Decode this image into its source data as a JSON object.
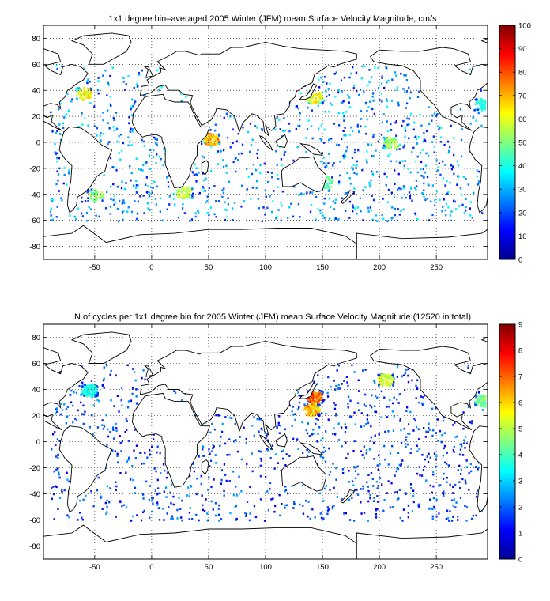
{
  "chart_data": [
    {
      "type": "heatmap",
      "title": "1x1 degree bin–averaged 2005 Winter (JFM) mean Surface Velocity Magnitude, cm/s",
      "xlabel": "",
      "ylabel": "",
      "xlim": [
        -95,
        295
      ],
      "ylim": [
        -90,
        90
      ],
      "x_ticks": [
        -50,
        0,
        50,
        100,
        150,
        200,
        250
      ],
      "y_ticks": [
        80,
        60,
        40,
        20,
        0,
        -20,
        -40,
        -60,
        -80
      ],
      "grid": true,
      "colormap": "jet",
      "colorbar": {
        "min": 0,
        "max": 100,
        "ticks": [
          0,
          10,
          20,
          30,
          40,
          50,
          60,
          70,
          80,
          90,
          100
        ]
      },
      "hotspots": [
        {
          "lon": -60,
          "lat": 38,
          "value": 70
        },
        {
          "lon": 143,
          "lat": 35,
          "value": 70
        },
        {
          "lon": 52,
          "lat": 3,
          "value": 80
        },
        {
          "lon": 210,
          "lat": 0,
          "value": 60
        },
        {
          "lon": 28,
          "lat": -38,
          "value": 65
        },
        {
          "lon": 152,
          "lat": -30,
          "value": 55
        },
        {
          "lon": -50,
          "lat": -40,
          "value": 60
        },
        {
          "lon": 290,
          "lat": 30,
          "value": 45
        }
      ]
    },
    {
      "type": "heatmap",
      "title": "N of cycles per 1x1 degree bin for 2005 Winter (JFM) mean Surface Velocity Magnitude (12520 in total)",
      "xlabel": "",
      "ylabel": "",
      "xlim": [
        -95,
        295
      ],
      "ylim": [
        -90,
        90
      ],
      "x_ticks": [
        -50,
        0,
        50,
        100,
        150,
        200,
        250
      ],
      "y_ticks": [
        80,
        60,
        40,
        20,
        0,
        -20,
        -40,
        -60,
        -80
      ],
      "grid": true,
      "colormap": "jet",
      "colorbar": {
        "min": 0,
        "max": 9,
        "ticks": [
          0,
          1,
          2,
          3,
          4,
          5,
          6,
          7,
          8,
          9
        ]
      },
      "hotspots": [
        {
          "lon": 143,
          "lat": 35,
          "value": 8
        },
        {
          "lon": 140,
          "lat": 25,
          "value": 7
        },
        {
          "lon": 205,
          "lat": 48,
          "value": 6
        },
        {
          "lon": -55,
          "lat": 40,
          "value": 4
        },
        {
          "lon": 290,
          "lat": 32,
          "value": 5
        }
      ]
    }
  ]
}
